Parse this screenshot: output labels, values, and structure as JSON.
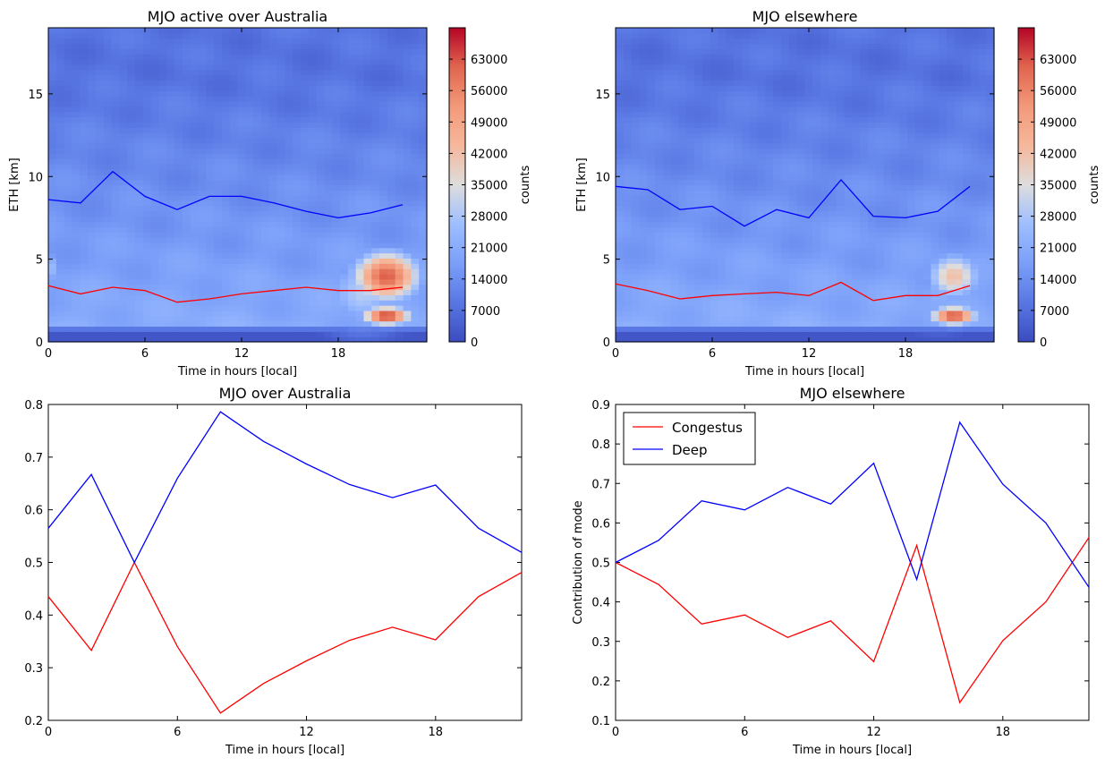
{
  "chart_data": [
    {
      "type": "heatmap",
      "title": "MJO active over Australia",
      "xlabel": "Time in hours [local]",
      "ylabel": "ETH [km]",
      "xlim": [
        0,
        23.5
      ],
      "ylim": [
        0,
        19
      ],
      "xticks": [
        0,
        6,
        12,
        18
      ],
      "yticks": [
        0,
        5,
        10,
        15
      ],
      "colorbar": {
        "label": "counts",
        "ticks": [
          0,
          7000,
          14000,
          21000,
          28000,
          35000,
          42000,
          49000,
          56000,
          63000
        ],
        "range": [
          0,
          70000
        ],
        "colormap": "coolwarm"
      },
      "hotspots": [
        {
          "x": 21,
          "y": 4.0,
          "sx": 2.2,
          "sy": 1.6,
          "value": 62000
        },
        {
          "x": 21,
          "y": 1.6,
          "sx": 1.6,
          "sy": 0.6,
          "value": 66000
        },
        {
          "x": 19.5,
          "y": 3.0,
          "sx": 2.5,
          "sy": 2.2,
          "value": 30000
        },
        {
          "x": 0,
          "y": 4.5,
          "sx": 1.0,
          "sy": 1.2,
          "value": 26000
        },
        {
          "x": 9,
          "y": 2.5,
          "sx": 3.5,
          "sy": 0.8,
          "value": 16000
        }
      ],
      "series": [
        {
          "color": "#0000ff",
          "x": [
            0,
            2,
            4,
            6,
            8,
            10,
            12,
            14,
            16,
            18,
            20,
            22
          ],
          "y": [
            8.6,
            8.4,
            10.3,
            8.8,
            8.0,
            8.8,
            8.8,
            8.4,
            7.9,
            7.5,
            7.8,
            8.3
          ]
        },
        {
          "color": "#ff0000",
          "x": [
            0,
            2,
            4,
            6,
            8,
            10,
            12,
            14,
            16,
            18,
            20,
            22
          ],
          "y": [
            3.4,
            2.9,
            3.3,
            3.1,
            2.4,
            2.6,
            2.9,
            3.1,
            3.3,
            3.1,
            3.1,
            3.3
          ]
        }
      ]
    },
    {
      "type": "heatmap",
      "title": "MJO elsewhere",
      "xlabel": "Time in hours [local]",
      "ylabel": "ETH [km]",
      "xlim": [
        0,
        23.5
      ],
      "ylim": [
        0,
        19
      ],
      "xticks": [
        0,
        6,
        12,
        18
      ],
      "yticks": [
        0,
        5,
        10,
        15
      ],
      "colorbar": {
        "label": "counts",
        "ticks": [
          0,
          7000,
          14000,
          21000,
          28000,
          35000,
          42000,
          49000,
          56000,
          63000
        ],
        "range": [
          0,
          70000
        ],
        "colormap": "coolwarm"
      },
      "hotspots": [
        {
          "x": 21,
          "y": 1.6,
          "sx": 1.5,
          "sy": 0.6,
          "value": 64000
        },
        {
          "x": 21,
          "y": 4.0,
          "sx": 1.8,
          "sy": 1.5,
          "value": 42000
        },
        {
          "x": 20,
          "y": 2.8,
          "sx": 2.0,
          "sy": 1.8,
          "value": 22000
        }
      ],
      "series": [
        {
          "color": "#0000ff",
          "x": [
            0,
            2,
            4,
            6,
            8,
            10,
            12,
            14,
            16,
            18,
            20,
            22
          ],
          "y": [
            9.4,
            9.2,
            8.0,
            8.2,
            7.0,
            8.0,
            7.5,
            9.8,
            7.6,
            7.5,
            7.9,
            9.4
          ]
        },
        {
          "color": "#ff0000",
          "x": [
            0,
            2,
            4,
            6,
            8,
            10,
            12,
            14,
            16,
            18,
            20,
            22
          ],
          "y": [
            3.5,
            3.1,
            2.6,
            2.8,
            2.9,
            3.0,
            2.8,
            3.6,
            2.5,
            2.8,
            2.8,
            3.4
          ]
        }
      ]
    },
    {
      "type": "line",
      "title": "MJO over Australia",
      "xlabel": "Time in hours [local]",
      "ylabel": "",
      "xlim": [
        0,
        22
      ],
      "ylim": [
        0.2,
        0.8
      ],
      "xticks": [
        0,
        6,
        12,
        18
      ],
      "yticks": [
        0.2,
        0.3,
        0.4,
        0.5,
        0.6,
        0.7,
        0.8
      ],
      "series": [
        {
          "color": "#ff0000",
          "x": [
            0,
            2,
            4,
            6,
            8,
            10,
            12,
            14,
            16,
            18,
            20,
            22
          ],
          "y": [
            0.435,
            0.333,
            0.5,
            0.34,
            0.214,
            0.27,
            0.313,
            0.352,
            0.377,
            0.353,
            0.435,
            0.481
          ]
        },
        {
          "color": "#0000ff",
          "x": [
            0,
            2,
            4,
            6,
            8,
            10,
            12,
            14,
            16,
            18,
            20,
            22
          ],
          "y": [
            0.565,
            0.667,
            0.5,
            0.66,
            0.786,
            0.73,
            0.687,
            0.648,
            0.623,
            0.647,
            0.565,
            0.519
          ]
        }
      ]
    },
    {
      "type": "line",
      "title": "MJO elsewhere",
      "xlabel": "Time in hours [local]",
      "ylabel": "Contribution of mode",
      "xlim": [
        0,
        22
      ],
      "ylim": [
        0.1,
        0.9
      ],
      "xticks": [
        0,
        6,
        12,
        18
      ],
      "yticks": [
        0.1,
        0.2,
        0.3,
        0.4,
        0.5,
        0.6,
        0.7,
        0.8,
        0.9
      ],
      "legend": {
        "placement": "top-left"
      },
      "series": [
        {
          "name": "Congestus",
          "color": "#ff0000",
          "x": [
            0,
            2,
            4,
            6,
            8,
            10,
            12,
            14,
            16,
            18,
            20,
            22
          ],
          "y": [
            0.5,
            0.444,
            0.344,
            0.367,
            0.31,
            0.352,
            0.249,
            0.543,
            0.145,
            0.302,
            0.4,
            0.563
          ]
        },
        {
          "name": "Deep",
          "color": "#0000ff",
          "x": [
            0,
            2,
            4,
            6,
            8,
            10,
            12,
            14,
            16,
            18,
            20,
            22
          ],
          "y": [
            0.5,
            0.556,
            0.656,
            0.633,
            0.69,
            0.648,
            0.751,
            0.457,
            0.855,
            0.698,
            0.6,
            0.437
          ]
        }
      ]
    }
  ]
}
